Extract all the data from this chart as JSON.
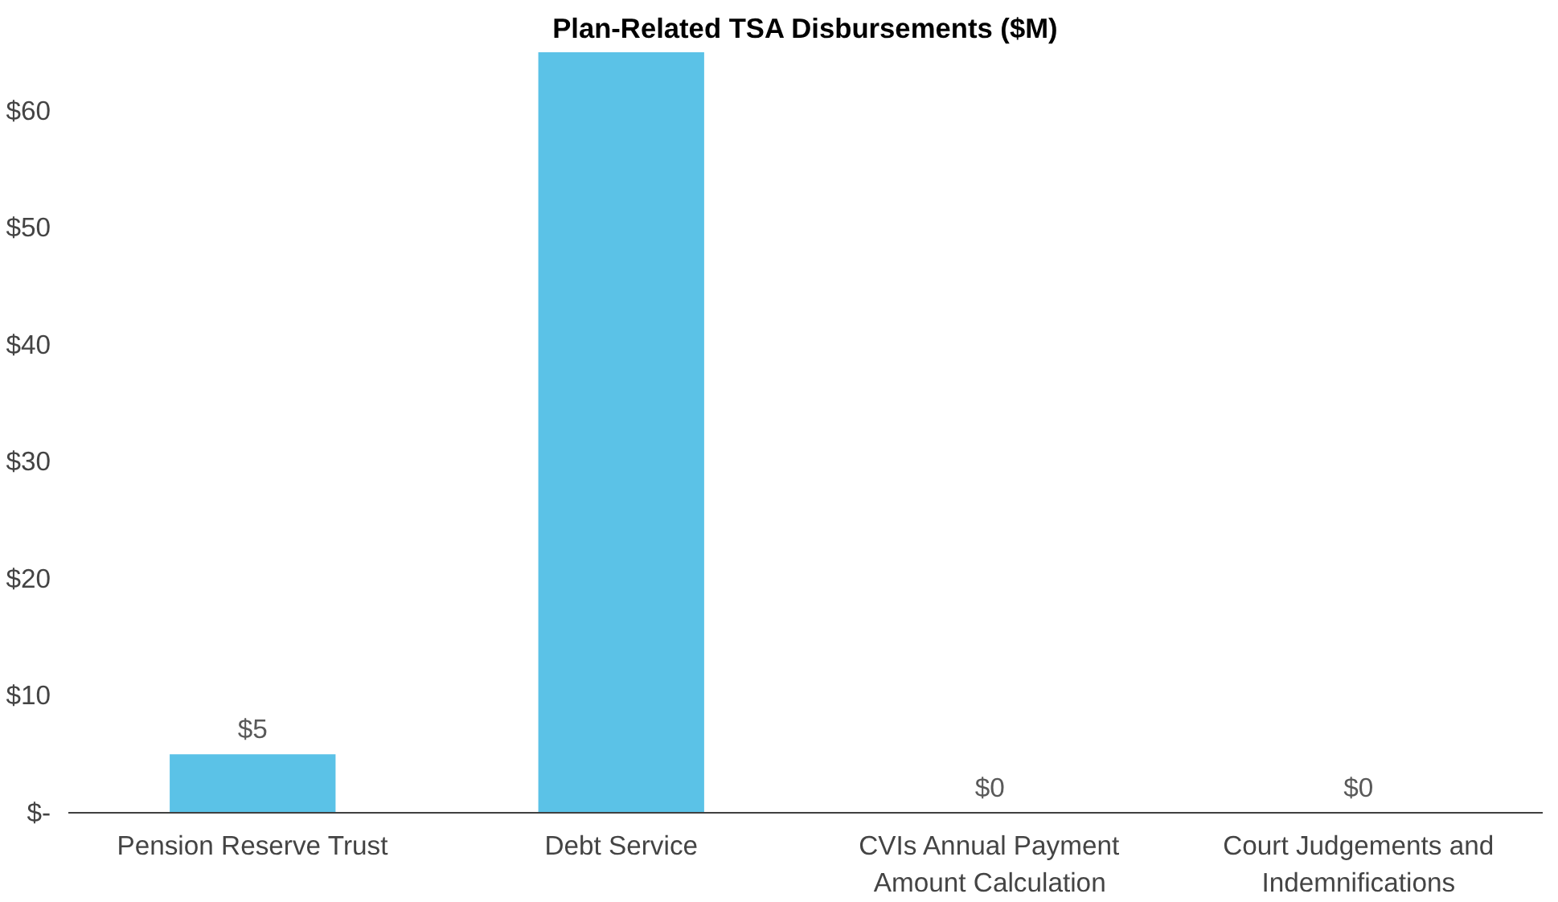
{
  "chart_data": {
    "type": "bar",
    "title": "Plan-Related TSA Disbursements ($M)",
    "categories": [
      "Pension Reserve Trust",
      "Debt Service",
      "CVIs Annual Payment Amount Calculation",
      "Court Judgements and Indemnifications"
    ],
    "values": [
      5,
      65,
      0,
      0
    ],
    "value_labels": [
      "$5",
      null,
      "$0",
      "$0"
    ],
    "color": "#5bc2e7",
    "ylim": [
      0,
      65
    ],
    "yticks": [
      {
        "value": 0,
        "label": "$-"
      },
      {
        "value": 10,
        "label": "$10"
      },
      {
        "value": 20,
        "label": "$20"
      },
      {
        "value": 30,
        "label": "$30"
      },
      {
        "value": 40,
        "label": "$40"
      },
      {
        "value": 50,
        "label": "$50"
      },
      {
        "value": 60,
        "label": "$60"
      }
    ],
    "grid": false
  }
}
